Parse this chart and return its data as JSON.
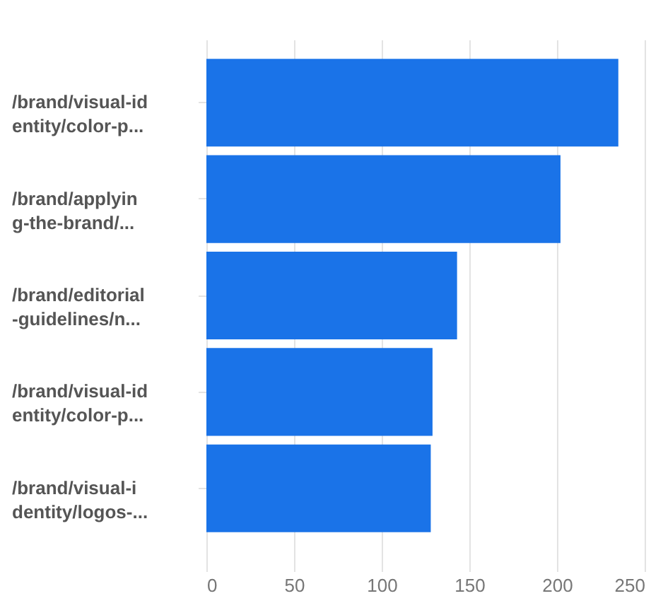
{
  "chart_data": {
    "type": "bar",
    "orientation": "horizontal",
    "categories": [
      "/brand/visual-id\nentity/color-p...",
      "/brand/applyin\ng-the-brand/...",
      "/brand/editorial\n-guidelines/n...",
      "/brand/visual-id\nentity/color-p...",
      "/brand/visual-i\ndentity/logos-..."
    ],
    "values": [
      235,
      202,
      143,
      129,
      128
    ],
    "color": "#1a73e8",
    "xlim": [
      0,
      250
    ],
    "xticks": [
      0,
      50,
      100,
      150,
      200,
      250
    ],
    "grid": "x"
  }
}
